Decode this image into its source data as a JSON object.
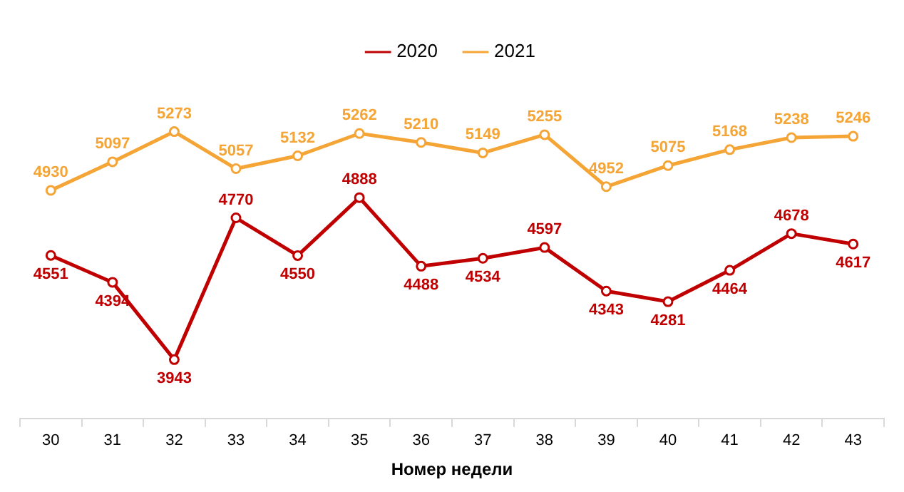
{
  "chart_data": {
    "type": "line",
    "xlabel": "Номер недели",
    "categories": [
      "30",
      "31",
      "32",
      "33",
      "34",
      "35",
      "36",
      "37",
      "38",
      "39",
      "40",
      "41",
      "42",
      "43"
    ],
    "series": [
      {
        "name": "2020",
        "color": "#c00000",
        "values": [
          4551,
          4394,
          3943,
          4770,
          4550,
          4888,
          4488,
          4534,
          4597,
          4343,
          4281,
          4464,
          4678,
          4617
        ]
      },
      {
        "name": "2021",
        "color": "#f4a536",
        "values": [
          4930,
          5097,
          5273,
          5057,
          5132,
          5262,
          5210,
          5149,
          5255,
          4952,
          5075,
          5168,
          5238,
          5246
        ]
      }
    ],
    "data_labels": true,
    "legend": "top",
    "marker": "circle",
    "line_style": "solid",
    "grid": false
  }
}
